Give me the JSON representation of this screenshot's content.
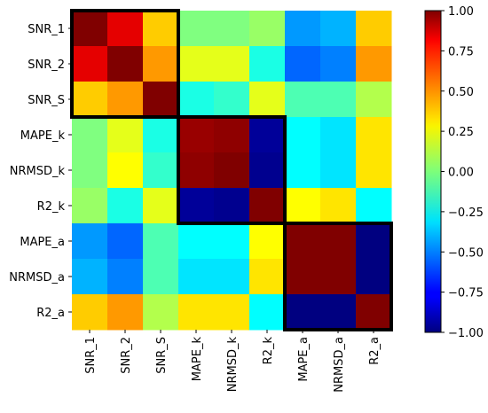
{
  "chart_data": {
    "type": "heatmap",
    "title": "",
    "xlabel": "",
    "ylabel": "",
    "labels": [
      "SNR_1",
      "SNR_2",
      "SNR_S",
      "MAPE_k",
      "NRMSD_k",
      "R2_k",
      "MAPE_a",
      "NRMSD_a",
      "R2_a"
    ],
    "matrix": [
      [
        1.0,
        0.8,
        0.35,
        0.0,
        0.0,
        0.05,
        -0.45,
        -0.4,
        0.35
      ],
      [
        0.8,
        1.0,
        0.45,
        0.2,
        0.2,
        -0.2,
        -0.55,
        -0.5,
        0.45
      ],
      [
        0.35,
        0.45,
        1.0,
        -0.2,
        -0.15,
        0.2,
        -0.1,
        -0.1,
        0.1
      ],
      [
        0.0,
        0.2,
        -0.2,
        0.95,
        0.97,
        -0.95,
        -0.25,
        -0.3,
        0.3
      ],
      [
        0.0,
        0.25,
        -0.15,
        0.97,
        1.0,
        -0.97,
        -0.25,
        -0.3,
        0.3
      ],
      [
        0.05,
        -0.2,
        0.2,
        -0.95,
        -0.97,
        1.0,
        0.25,
        0.3,
        -0.25
      ],
      [
        -0.45,
        -0.55,
        -0.1,
        -0.25,
        -0.25,
        0.25,
        1.0,
        1.0,
        -1.0
      ],
      [
        -0.4,
        -0.5,
        -0.1,
        -0.3,
        -0.3,
        0.3,
        1.0,
        1.0,
        -1.0
      ],
      [
        0.35,
        0.45,
        0.1,
        0.3,
        0.3,
        -0.25,
        -1.0,
        -1.0,
        1.0
      ]
    ],
    "blocks": [
      [
        0,
        2
      ],
      [
        3,
        5
      ],
      [
        6,
        8
      ]
    ],
    "colorbar": {
      "min": -1.0,
      "max": 1.0,
      "ticks": [
        "1.00",
        "0.75",
        "0.50",
        "0.25",
        "0.00",
        "−0.25",
        "−0.50",
        "−0.75",
        "−1.00"
      ],
      "tick_values": [
        1.0,
        0.75,
        0.5,
        0.25,
        0.0,
        -0.25,
        -0.5,
        -0.75,
        -1.0
      ],
      "colormap": "jet"
    }
  }
}
